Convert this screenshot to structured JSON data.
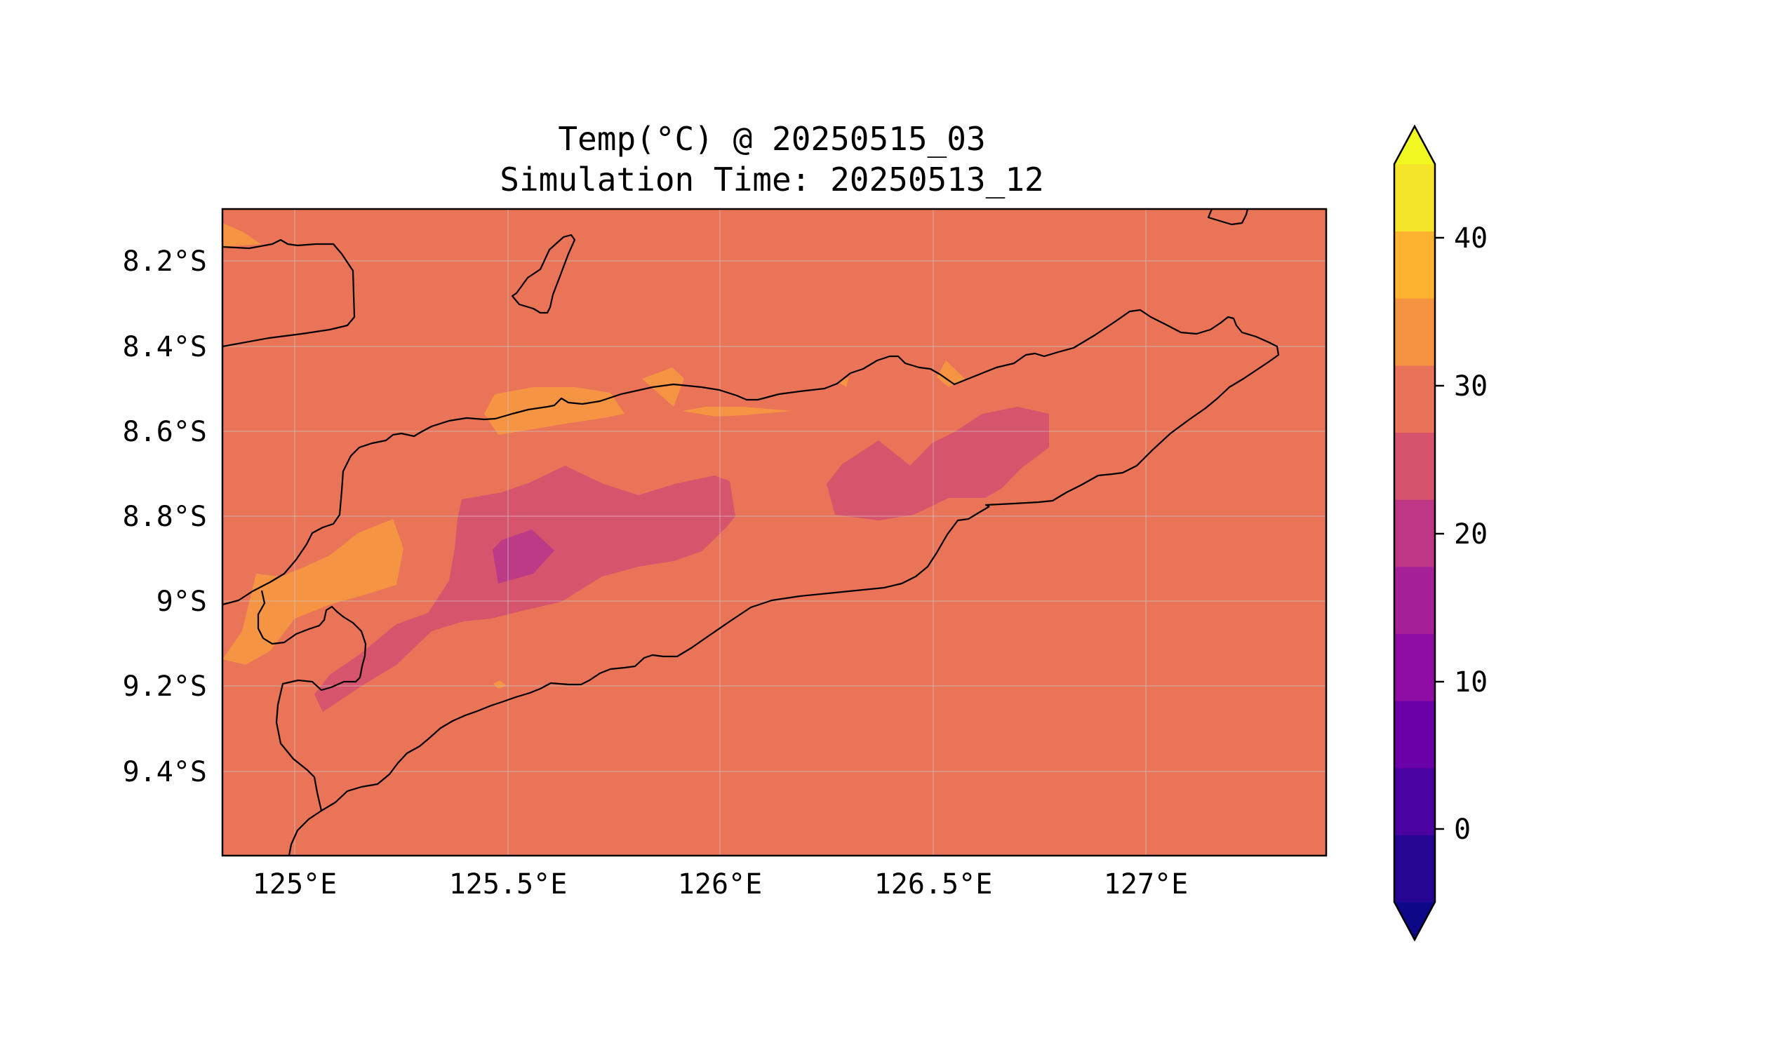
{
  "map": {
    "title_line1": "Temp(°C) @ 20250515_03",
    "title_line2": "Simulation Time: 20250513_12",
    "variable": "Temperature",
    "units": "°C",
    "lon_range": [
      124.82,
      127.42
    ],
    "lat_range": [
      -9.6,
      -8.07
    ],
    "x_ticks": [
      "125°E",
      "125.5°E",
      "126°E",
      "126.5°E",
      "127°E"
    ],
    "y_ticks": [
      "8.2°S",
      "8.4°S",
      "8.6°S",
      "8.8°S",
      "9°S",
      "9.2°S",
      "9.4°S"
    ],
    "gridlines": true,
    "background_level": "25–30",
    "colors": {
      "level_25_30": "#e97458",
      "level_30_35": "#f59443",
      "level_20_25": "#d6546c",
      "level_15_20": "#bc3b86",
      "coastline": "#000000"
    }
  },
  "colorbar": {
    "ticks": [
      "0",
      "10",
      "20",
      "30",
      "40"
    ],
    "levels": [
      -5,
      0,
      5,
      10,
      15,
      20,
      25,
      30,
      35,
      40,
      45
    ],
    "extend": "both",
    "colors": [
      "#0d0887",
      "#240691",
      "#4a02a0",
      "#6c00a8",
      "#8f0da4",
      "#a62098",
      "#bd3786",
      "#d5536d",
      "#e87358",
      "#f59342",
      "#fdb32f",
      "#f4e52b",
      "#f0f921"
    ]
  }
}
